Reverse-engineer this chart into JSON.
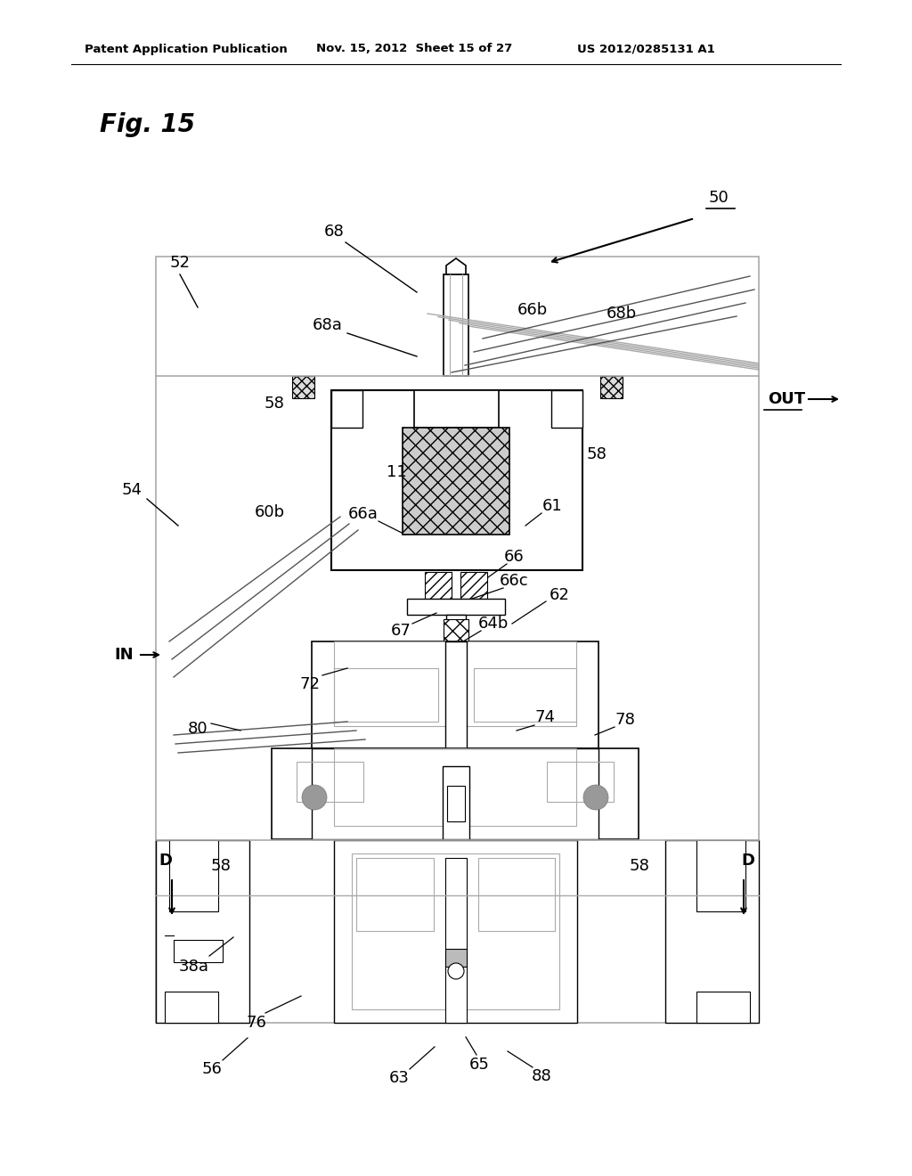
{
  "header_left": "Patent Application Publication",
  "header_mid": "Nov. 15, 2012  Sheet 15 of 27",
  "header_right": "US 2012/0285131 A1",
  "fig_label": "Fig. 15",
  "bg_color": "#ffffff",
  "lc": "#000000",
  "glc": "#aaaaaa",
  "gray_fill": "#aaaaaa",
  "dark_gray": "#888888",
  "light_gray": "#cccccc"
}
